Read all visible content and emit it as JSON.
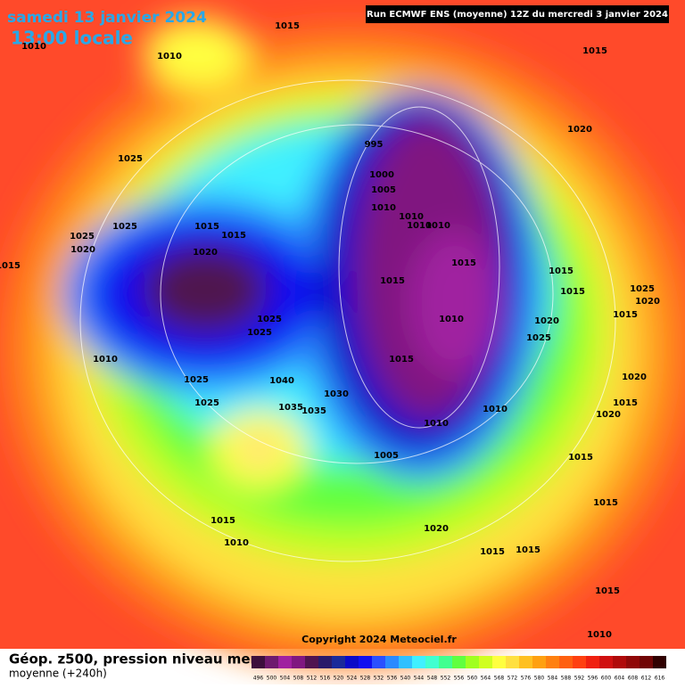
{
  "header": {
    "date": "samedi 13 janvier 2024",
    "time": "13:00 locale",
    "run": "Run ECMWF ENS (moyenne) 12Z du mercredi 3 janvier 2024"
  },
  "map": {
    "isobar_labels": [
      1015,
      1010,
      1010,
      1015,
      1020,
      1025,
      995,
      1000,
      1005,
      1010,
      1010,
      1010,
      1010,
      1015,
      1015,
      1025,
      1025,
      1020,
      1015,
      1020,
      1015,
      1015,
      1015,
      1025,
      1020,
      1015,
      1025,
      1025,
      1010,
      1020,
      1015,
      1025,
      1010,
      1015,
      1025,
      1040,
      1020,
      1030,
      1025,
      1015,
      1035,
      1035,
      1010,
      1020,
      1010,
      1005,
      1015,
      1015,
      1015,
      1020,
      1010,
      1015,
      1015,
      1015,
      1010
    ],
    "copyright": "Copyright 2024 Meteociel.fr"
  },
  "footer": {
    "title": "Géop. z500, pression niveau mer",
    "subtitle": "moyenne  (+240h)"
  },
  "colorbar": {
    "labels": [
      496,
      500,
      504,
      508,
      512,
      516,
      520,
      524,
      528,
      532,
      536,
      540,
      544,
      548,
      552,
      556,
      560,
      564,
      568,
      572,
      576,
      580,
      584,
      588,
      592,
      596,
      600,
      604,
      608,
      612,
      616
    ],
    "colors": [
      "#3c0f3c",
      "#6e1a6e",
      "#a020a0",
      "#801880",
      "#501450",
      "#2a1a6a",
      "#1a2a9a",
      "#0a0ac8",
      "#1010f0",
      "#2a50ff",
      "#2a8aff",
      "#30c0ff",
      "#40f0ff",
      "#40ffd0",
      "#40ff90",
      "#60ff40",
      "#a0ff20",
      "#d0ff20",
      "#ffff40",
      "#ffe040",
      "#ffc020",
      "#ffa010",
      "#ff8010",
      "#ff6010",
      "#ff4010",
      "#f02010",
      "#d01010",
      "#b00a0a",
      "#900808",
      "#700505",
      "#300000"
    ]
  }
}
